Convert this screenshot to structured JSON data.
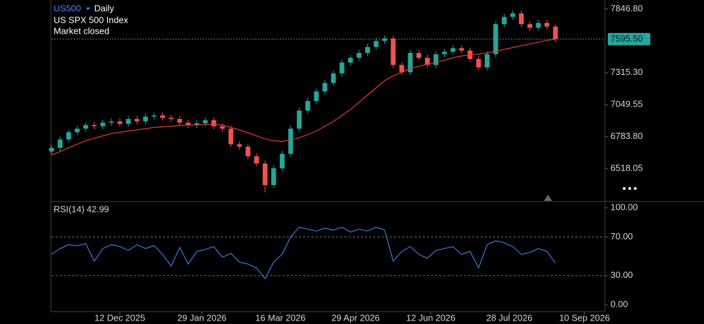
{
  "header": {
    "symbol": "US500",
    "interval": "Daily",
    "name": "US SPX 500 Index",
    "status": "Market closed"
  },
  "chart_data": [
    {
      "type": "candlestick",
      "x": [
        "2025-11-02",
        "2025-11-07",
        "2025-11-12",
        "2025-11-17",
        "2025-11-22",
        "2025-11-27",
        "2025-12-02",
        "2025-12-07",
        "2025-12-12",
        "2025-12-17",
        "2025-12-22",
        "2025-12-27",
        "2026-01-01",
        "2026-01-06",
        "2026-01-11",
        "2026-01-16",
        "2026-01-21",
        "2026-01-26",
        "2026-01-31",
        "2026-02-05",
        "2026-02-10",
        "2026-02-15",
        "2026-02-20",
        "2026-02-25",
        "2026-03-02",
        "2026-03-07",
        "2026-03-12",
        "2026-03-17",
        "2026-03-22",
        "2026-03-27",
        "2026-04-01",
        "2026-04-06",
        "2026-04-11",
        "2026-04-16",
        "2026-04-21",
        "2026-04-26",
        "2026-05-01",
        "2026-05-06",
        "2026-05-11",
        "2026-05-16",
        "2026-05-21",
        "2026-05-26",
        "2026-05-31",
        "2026-06-05",
        "2026-06-10",
        "2026-06-15",
        "2026-06-20",
        "2026-06-25",
        "2026-06-30",
        "2026-07-05",
        "2026-07-10",
        "2026-07-15",
        "2026-07-20",
        "2026-07-25",
        "2026-07-30",
        "2026-08-04",
        "2026-08-09",
        "2026-08-14",
        "2026-08-19",
        "2026-08-24"
      ],
      "open": [
        6660,
        6690,
        6760,
        6820,
        6850,
        6880,
        6870,
        6900,
        6910,
        6890,
        6930,
        6910,
        6950,
        6960,
        6940,
        6930,
        6900,
        6880,
        6895,
        6920,
        6870,
        6850,
        6720,
        6700,
        6620,
        6560,
        6380,
        6520,
        6640,
        6850,
        7000,
        7080,
        7160,
        7230,
        7310,
        7400,
        7440,
        7480,
        7530,
        7580,
        7600,
        7380,
        7320,
        7480,
        7440,
        7380,
        7470,
        7490,
        7520,
        7500,
        7430,
        7360,
        7470,
        7720,
        7780,
        7810,
        7720,
        7690,
        7730,
        7700
      ],
      "high": [
        6715,
        6785,
        6845,
        6875,
        6905,
        6905,
        6925,
        6935,
        6935,
        6955,
        6955,
        6975,
        6985,
        6985,
        6965,
        6955,
        6925,
        6920,
        6945,
        6945,
        6895,
        6875,
        6745,
        6725,
        6645,
        6585,
        6545,
        6665,
        6875,
        7025,
        7105,
        7185,
        7255,
        7335,
        7425,
        7465,
        7505,
        7555,
        7605,
        7625,
        7625,
        7405,
        7505,
        7505,
        7465,
        7495,
        7515,
        7545,
        7545,
        7525,
        7455,
        7495,
        7745,
        7805,
        7835,
        7835,
        7745,
        7755,
        7755,
        7725
      ],
      "low": [
        6635,
        6665,
        6735,
        6795,
        6825,
        6845,
        6845,
        6875,
        6865,
        6865,
        6885,
        6885,
        6925,
        6915,
        6905,
        6875,
        6855,
        6855,
        6870,
        6845,
        6825,
        6695,
        6675,
        6595,
        6535,
        6320,
        6355,
        6495,
        6615,
        6825,
        6975,
        7055,
        7135,
        7205,
        7285,
        7375,
        7415,
        7455,
        7505,
        7555,
        7355,
        7295,
        7295,
        7415,
        7355,
        7355,
        7445,
        7465,
        7475,
        7405,
        7335,
        7335,
        7445,
        7695,
        7755,
        7695,
        7665,
        7665,
        7675,
        7570
      ],
      "close": [
        6690,
        6760,
        6820,
        6850,
        6880,
        6870,
        6900,
        6910,
        6890,
        6930,
        6910,
        6950,
        6960,
        6940,
        6930,
        6900,
        6880,
        6895,
        6920,
        6870,
        6850,
        6720,
        6700,
        6620,
        6560,
        6380,
        6520,
        6640,
        6850,
        7000,
        7080,
        7160,
        7230,
        7310,
        7400,
        7440,
        7480,
        7530,
        7580,
        7600,
        7380,
        7320,
        7480,
        7440,
        7380,
        7470,
        7490,
        7520,
        7500,
        7430,
        7360,
        7470,
        7720,
        7780,
        7810,
        7720,
        7690,
        7730,
        7700,
        7595.5
      ],
      "up_color": "#26a69a",
      "down_color": "#ef5350",
      "ma": {
        "color": "#e53935",
        "values": [
          6630,
          6660,
          6690,
          6720,
          6750,
          6770,
          6790,
          6810,
          6820,
          6830,
          6840,
          6850,
          6860,
          6865,
          6870,
          6875,
          6880,
          6880,
          6885,
          6885,
          6880,
          6860,
          6840,
          6815,
          6790,
          6765,
          6750,
          6745,
          6755,
          6775,
          6800,
          6830,
          6870,
          6910,
          6960,
          7010,
          7070,
          7130,
          7190,
          7250,
          7290,
          7320,
          7350,
          7370,
          7385,
          7400,
          7420,
          7440,
          7455,
          7465,
          7470,
          7480,
          7495,
          7510,
          7525,
          7540,
          7555,
          7570,
          7585,
          7595
        ]
      },
      "last_price": {
        "value": 7595.5,
        "label": "7595.50",
        "color": "#26a69a"
      },
      "xlim": [
        "2025-11-02",
        "2026-09-22"
      ],
      "xticks": [
        {
          "value": "2025-12-12",
          "label": "12 Dec 2025"
        },
        {
          "value": "2026-01-29",
          "label": "29 Jan 2026"
        },
        {
          "value": "2026-03-16",
          "label": "16 Mar 2026"
        },
        {
          "value": "2026-04-29",
          "label": "29 Apr 2026"
        },
        {
          "value": "2026-06-12",
          "label": "12 Jun 2026"
        },
        {
          "value": "2026-07-28",
          "label": "28 Jul 2026"
        },
        {
          "value": "2026-09-10",
          "label": "10 Sep 2026"
        }
      ],
      "ylim": [
        6243,
        7921
      ],
      "yticks": [
        {
          "value": 7846.8,
          "label": "7846.80"
        },
        {
          "value": 7315.3,
          "label": "7315.30"
        },
        {
          "value": 7049.55,
          "label": "7049.55"
        },
        {
          "value": 6783.8,
          "label": "6783.80"
        },
        {
          "value": 6518.05,
          "label": "6518.05"
        }
      ]
    },
    {
      "type": "line",
      "series": [
        {
          "name": "RSI(14)",
          "color": "#3d7be0",
          "values": [
            52,
            58,
            62,
            61,
            63,
            45,
            58,
            62,
            60,
            56,
            62,
            58,
            61,
            52,
            40,
            59,
            42,
            55,
            57,
            60,
            49,
            53,
            44,
            42,
            38,
            27,
            44,
            52,
            70,
            80,
            78,
            76,
            79,
            77,
            80,
            75,
            78,
            76,
            80,
            77,
            45,
            55,
            60,
            52,
            48,
            56,
            58,
            60,
            52,
            55,
            38,
            62,
            66,
            64,
            60,
            52,
            54,
            58,
            55,
            42.99
          ]
        }
      ],
      "ylim": [
        -7,
        105
      ],
      "yticks": [
        {
          "value": 100,
          "label": "100.00"
        },
        {
          "value": 70,
          "label": "70.00"
        },
        {
          "value": 30,
          "label": "30.00"
        },
        {
          "value": 0,
          "label": "0.00"
        }
      ],
      "levels": [
        70,
        30
      ]
    }
  ]
}
